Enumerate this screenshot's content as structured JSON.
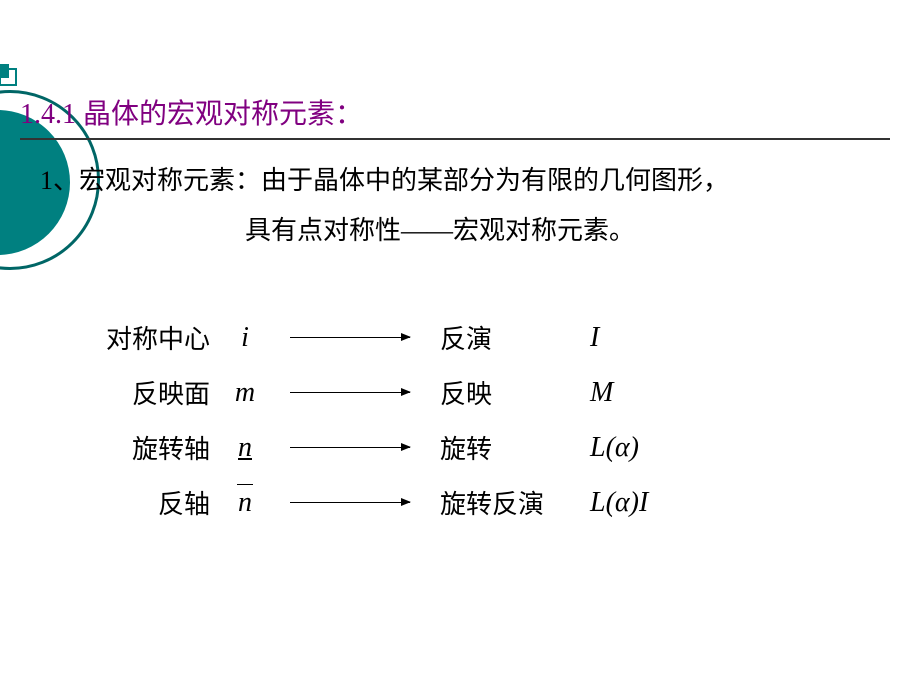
{
  "colors": {
    "heading_color": "#800080",
    "circle_color": "#008080",
    "circle_border": "#006666",
    "text_color": "#000000",
    "background": "#ffffff"
  },
  "heading": "1.4.1 晶体的宏观对称元素：",
  "body": {
    "line1": "1、宏观对称元素：由于晶体中的某部分为有限的几何图形，",
    "line2": "具有点对称性——宏观对称元素。"
  },
  "table": {
    "rows": [
      {
        "label": "对称中心",
        "symbol": "i",
        "symbol_style": "plain",
        "operation": "反演",
        "notation": "I"
      },
      {
        "label": "反映面",
        "symbol": "m",
        "symbol_style": "plain",
        "operation": "反映",
        "notation": "M"
      },
      {
        "label": "旋转轴",
        "symbol": "n",
        "symbol_style": "underline",
        "operation": "旋转",
        "notation": "L(α)"
      },
      {
        "label": "反轴",
        "symbol": "n",
        "symbol_style": "overline",
        "operation": "旋转反演",
        "notation": "L(α)I"
      }
    ]
  },
  "typography": {
    "heading_fontsize": 28,
    "body_fontsize": 26,
    "symbol_fontsize": 28
  }
}
